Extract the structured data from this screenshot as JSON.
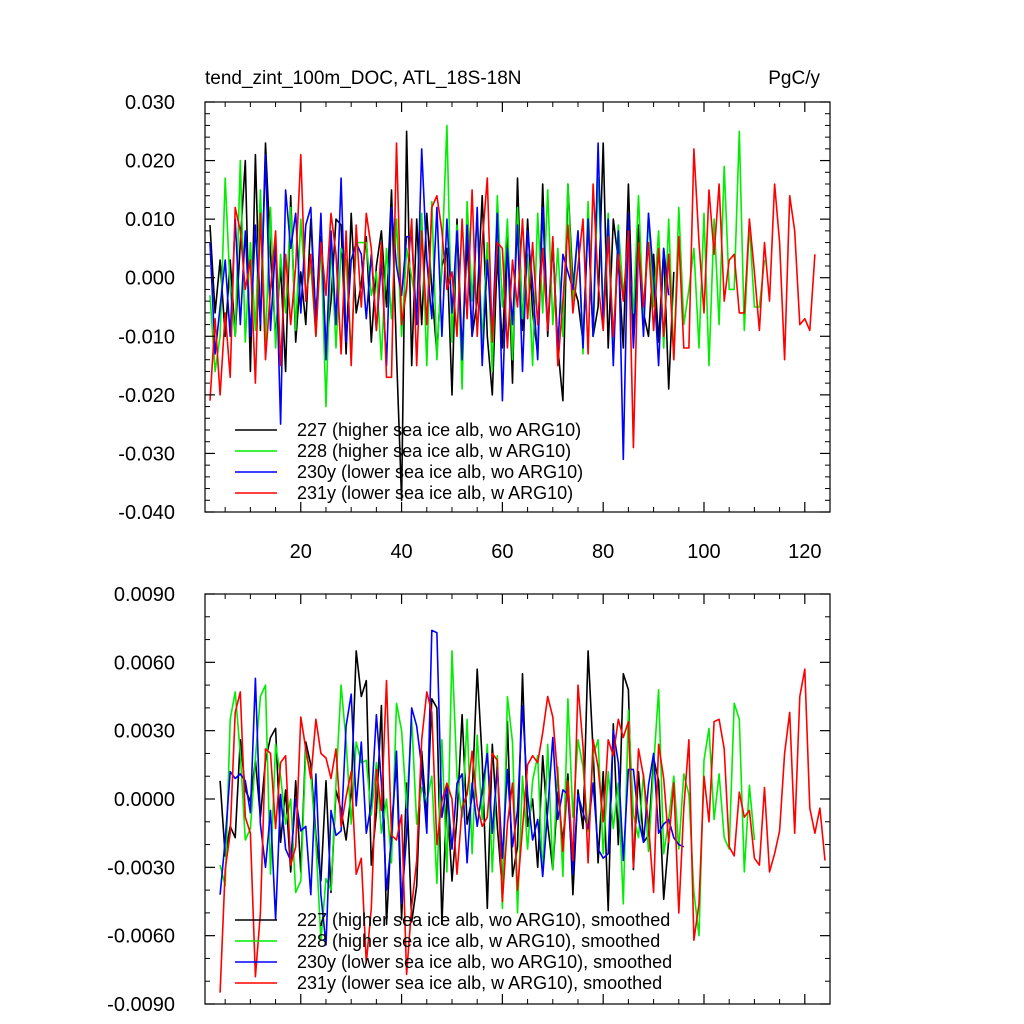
{
  "chart_data": [
    {
      "type": "line",
      "title": "tend_zint_100m_DOC, ATL_18S-18N",
      "units": "PgC/y",
      "xlim": [
        1,
        125
      ],
      "ylim": [
        -0.04,
        0.03
      ],
      "xticks": [
        20,
        40,
        60,
        80,
        100,
        120
      ],
      "xtick_labels": [
        "20",
        "40",
        "60",
        "80",
        "100",
        "120"
      ],
      "yticks": [
        -0.04,
        -0.03,
        -0.02,
        -0.01,
        0.0,
        0.01,
        0.02,
        0.03
      ],
      "ytick_labels": [
        "-0.040",
        "-0.030",
        "-0.020",
        "-0.010",
        "0.000",
        "0.010",
        "0.020",
        "0.030"
      ],
      "legend_position": "bottom-left",
      "series": [
        {
          "name": "227 (higher sea ice alb, wo ARG10)",
          "color": "#000000",
          "x_start": 2,
          "values": [
            0.009,
            -0.006,
            0.003,
            -0.01,
            0.003,
            -0.01,
            0.006,
            0.02,
            -0.016,
            0.021,
            -0.009,
            0.023,
            0.004,
            -0.01,
            0.002,
            -0.016,
            0.014,
            -0.011,
            0.001,
            -0.008,
            0.01,
            -0.007,
            0.007,
            -0.012,
            -0.004,
            0.01,
            0.009,
            -0.013,
            0.011,
            -0.006,
            -0.001,
            0.007,
            -0.011,
            0.002,
            0.008,
            -0.005,
            0.015,
            -0.013,
            -0.038,
            0.025,
            -0.015,
            0.01,
            -0.008,
            0.011,
            -0.002,
            -0.013,
            0.002,
            0.005,
            -0.02,
            0.01,
            -0.013,
            0.006,
            -0.01,
            -0.004,
            0.014,
            -0.01,
            -0.02,
            0.004,
            -0.012,
            0.008,
            -0.018,
            0.017,
            -0.009,
            0.01,
            -0.006,
            -0.013,
            0.016,
            -0.01,
            0.006,
            -0.012,
            -0.021,
            0.016,
            -0.001,
            -0.004,
            -0.011,
            0.01,
            -0.01,
            -0.005,
            0.023,
            -0.012,
            0.01,
            0.003,
            -0.012,
            0.016,
            -0.01,
            0.009,
            -0.006,
            -0.01,
            0.004,
            -0.011,
            0.005,
            -0.019,
            0.001
          ]
        },
        {
          "name": "228 (higher sea ice alb, w ARG10)",
          "color": "#00ee00",
          "x_start": 2,
          "values": [
            -0.003,
            -0.016,
            -0.01,
            0.017,
            -0.002,
            -0.01,
            0.02,
            -0.011,
            0.006,
            -0.009,
            0.015,
            -0.011,
            0.012,
            -0.012,
            0.004,
            -0.006,
            0.012,
            -0.009,
            0.01,
            -0.003,
            0.002,
            -0.01,
            0.006,
            -0.022,
            0.006,
            -0.012,
            0.005,
            0.003,
            -0.013,
            0.006,
            0.006,
            0.006,
            -0.003,
            0.001,
            -0.014,
            0.005,
            -0.007,
            0.01,
            -0.01,
            0.005,
            0.0,
            -0.005,
            0.011,
            -0.015,
            0.013,
            -0.014,
            0.003,
            0.026,
            -0.011,
            0.009,
            -0.019,
            0.013,
            -0.004,
            0.011,
            -0.011,
            0.006,
            -0.016,
            0.014,
            -0.005,
            0.01,
            -0.014,
            0.012,
            -0.007,
            0.004,
            -0.015,
            0.011,
            -0.006,
            0.015,
            -0.008,
            0.005,
            -0.01,
            0.016,
            -0.004,
            0.008,
            -0.013,
            0.013,
            -0.01,
            0.017,
            -0.006,
            0.011,
            -0.012,
            0.009,
            -0.003,
            0.005,
            -0.006,
            0.014,
            -0.007,
            0.011,
            -0.005,
            0.008,
            -0.012,
            0.01,
            -0.014,
            0.012,
            -0.008,
            -0.002,
            0.005,
            -0.012,
            0.011,
            -0.015,
            0.01,
            -0.008,
            0.019,
            -0.002,
            -0.002,
            0.025,
            -0.009,
            0.009,
            -0.005,
            -0.005,
            0.003
          ]
        },
        {
          "name": "230y (lower sea ice alb, wo ARG10)",
          "color": "#0000ff",
          "x_start": 2,
          "values": [
            0.006,
            -0.013,
            -0.005,
            0.003,
            -0.01,
            0.01,
            -0.008,
            0.008,
            -0.01,
            0.009,
            -0.008,
            0.021,
            -0.009,
            0.006,
            -0.025,
            0.015,
            0.005,
            0.011,
            -0.006,
            0.009,
            0.012,
            -0.008,
            0.011,
            -0.014,
            0.008,
            -0.008,
            0.017,
            -0.011,
            0.003,
            0.006,
            0.004,
            -0.007,
            0.004,
            -0.009,
            0.003,
            -0.015,
            0.012,
            0.002,
            -0.003,
            0.007,
            0.007,
            -0.008,
            0.022,
            0.003,
            -0.007,
            0.012,
            -0.01,
            0.01,
            -0.006,
            0.008,
            -0.014,
            0.009,
            -0.01,
            0.012,
            -0.015,
            0.003,
            -0.01,
            0.011,
            -0.021,
            0.005,
            -0.008,
            0.009,
            -0.016,
            0.008,
            -0.001,
            -0.014,
            0.012,
            -0.009,
            0.006,
            -0.012,
            0.004,
            0.001,
            -0.002,
            0.008,
            -0.012,
            0.01,
            -0.01,
            0.023,
            -0.008,
            0.01,
            -0.015,
            0.008,
            -0.031,
            0.011,
            -0.012,
            0.006,
            -0.01,
            0.011,
            0.0,
            -0.015,
            0.005,
            -0.003
          ]
        },
        {
          "name": "231y (lower sea ice alb, w ARG10)",
          "color": "#ff0000",
          "x_start": 2,
          "values": [
            -0.021,
            -0.007,
            -0.02,
            -0.006,
            -0.017,
            0.012,
            0.008,
            -0.002,
            0.003,
            -0.018,
            0.011,
            -0.014,
            -0.002,
            0.008,
            -0.015,
            0.004,
            -0.008,
            0.002,
            0.021,
            -0.004,
            0.004,
            -0.01,
            0.006,
            -0.003,
            0.011,
            0.004,
            -0.013,
            0.008,
            -0.015,
            0.009,
            -0.005,
            0.011,
            0.005,
            -0.009,
            0.006,
            -0.017,
            -0.017,
            0.023,
            -0.008,
            -0.002,
            0.01,
            -0.015,
            0.008,
            -0.008,
            0.012,
            0.014,
            0.008,
            -0.002,
            0.001,
            -0.01,
            0.01,
            -0.007,
            0.015,
            -0.01,
            0.006,
            0.017,
            -0.011,
            0.006,
            0.005,
            -0.012,
            0.003,
            -0.005,
            0.01,
            -0.007,
            0.006,
            -0.008,
            0.005,
            -0.009,
            0.007,
            -0.015,
            -0.004,
            0.009,
            -0.006,
            0.002,
            0.01,
            -0.013,
            0.016,
            -0.001,
            -0.009,
            0.007,
            -0.01,
            0.004,
            -0.004,
            0.008,
            -0.029,
            0.006,
            -0.005,
            0.006,
            -0.009,
            0.005,
            -0.01,
            0.004,
            -0.014,
            0.007,
            -0.012,
            -0.012,
            0.022,
            0.006,
            -0.006,
            0.015,
            0.004,
            0.016,
            -0.004,
            0.003,
            0.004,
            -0.006,
            -0.006,
            0.01,
            0.001,
            -0.009,
            0.006,
            -0.004,
            0.016,
            0.006,
            -0.014,
            0.014,
            0.008,
            -0.008,
            -0.007,
            -0.009,
            0.004
          ]
        }
      ]
    },
    {
      "type": "line",
      "title": "",
      "xlim": [
        1,
        125
      ],
      "ylim": [
        -0.009,
        0.009
      ],
      "xticks": [
        20,
        40,
        60,
        80,
        100,
        120
      ],
      "xtick_labels": [],
      "yticks": [
        -0.009,
        -0.006,
        -0.003,
        0.0,
        0.003,
        0.006,
        0.009
      ],
      "ytick_labels": [
        "-0.0090",
        "-0.0060",
        "-0.0030",
        "0.0000",
        "0.0030",
        "0.0060",
        "0.0090"
      ],
      "legend_position": "bottom-left",
      "series": [
        {
          "name": "227 (higher sea ice alb, wo ARG10), smoothed",
          "color": "#000000",
          "x_start": 4,
          "values": [
            0.0008,
            -0.0025,
            -0.0012,
            -0.0017,
            0.0026,
            0.0004,
            -0.0001,
            0.0017,
            -0.0008,
            0.0017,
            0.0027,
            0.0031,
            -0.0019,
            0.0004,
            -0.0032,
            0.0008,
            -0.0032,
            0.0025,
            0.0015,
            -0.0016,
            -0.0036,
            0.0008,
            -0.0041,
            0.0004,
            -0.0005,
            -0.0018,
            0.0003,
            0.0065,
            0.0045,
            0.0052,
            -0.0029,
            -0.0006,
            0.0041,
            -0.0055,
            -0.0012,
            0.0016,
            -0.0053,
            0.0007,
            -0.0054,
            -0.0038,
            0.0021,
            -0.0009,
            0.0044,
            0.004,
            -0.0055,
            0.0002,
            -0.0036,
            -0.0008,
            0.0037,
            -0.0011,
            0.0001,
            0.0057,
            0.0017,
            -0.0048,
            0.0024,
            -0.0012,
            -0.004,
            0.0034,
            -0.0034,
            -0.0021,
            0.0055,
            -0.0012,
            0.0,
            -0.003,
            0.0019,
            -0.0011,
            -0.0031,
            0.0003,
            -0.0019,
            0.0011,
            -0.0042,
            0.0004,
            -0.0013,
            0.0065,
            0.0021,
            -0.0028,
            0.0012,
            -0.0049,
            0.0033,
            -0.002,
            0.0055,
            0.0048,
            -0.0031,
            0.0012,
            -0.0019,
            -0.0016,
            0.0018,
            0.0008,
            -0.0044,
            -0.0018
          ]
        },
        {
          "name": "228 (higher sea ice alb, w ARG10), smoothed",
          "color": "#00ee00",
          "x_start": 4,
          "values": [
            -0.0029,
            -0.0038,
            0.0035,
            0.0047,
            0.002,
            -0.0018,
            -0.0013,
            0.0018,
            0.0045,
            0.005,
            -0.0033,
            0.0024,
            0.001,
            -0.0011,
            0.0,
            -0.0041,
            -0.0036,
            0.0021,
            0.0011,
            -0.0019,
            -0.0062,
            -0.0035,
            -0.004,
            0.0007,
            0.005,
            0.0025,
            -0.0011,
            0.0025,
            0.0016,
            0.0017,
            -0.0007,
            0.0016,
            -0.0015,
            0.0,
            -0.0028,
            0.0042,
            0.003,
            -0.0004,
            0.0035,
            -0.0011,
            0.0005,
            -0.0001,
            0.001,
            -0.0037,
            0.0026,
            -0.0032,
            0.0065,
            0.001,
            -0.0008,
            0.0035,
            -0.0024,
            0.0028,
            -0.0009,
            0.0024,
            -0.0032,
            0.0019,
            -0.0048,
            0.0045,
            0.0025,
            -0.005,
            0.001,
            -0.0022,
            0.0008,
            0.0019,
            -0.0034,
            0.0024,
            -0.0031,
            0.0014,
            -0.0034,
            0.0044,
            -0.0008,
            0.0026,
            0.0014,
            -0.0014,
            0.0019,
            0.0026,
            -0.0024,
            0.0012,
            -0.0013,
            0.0007,
            -0.0046,
            0.0039,
            -0.0007,
            -0.0017,
            0.0011,
            -0.0023,
            0.0014,
            0.0048,
            -0.0024,
            -0.0009,
            0.001,
            -0.0022,
            0.0011,
            0.0002,
            -0.0041,
            -0.006,
            0.0017,
            0.0031,
            -0.0009,
            0.0011,
            -0.0017,
            -0.0022,
            0.0042,
            0.0035,
            -0.0032,
            0.0006,
            -0.0018
          ]
        },
        {
          "name": "230y (lower sea ice alb, wo ARG10), smoothed",
          "color": "#0000ff",
          "x_start": 4,
          "values": [
            -0.0042,
            -0.0018,
            0.0012,
            0.0009,
            0.0011,
            0.0008,
            -0.0006,
            0.0053,
            -0.0011,
            -0.003,
            -0.0005,
            -0.0053,
            0.0002,
            -0.0022,
            -0.0027,
            0.0,
            -0.0014,
            -0.0012,
            -0.0042,
            0.0011,
            -0.0042,
            -0.0064,
            -0.0005,
            -0.0016,
            -0.0014,
            0.0032,
            0.0046,
            -0.0003,
            0.0025,
            -0.0015,
            -0.0002,
            0.0037,
            0.0007,
            -0.004,
            -0.0018,
            0.0021,
            -0.0046,
            -0.0016,
            0.004,
            0.0032,
            0.0014,
            -0.0015,
            0.0074,
            0.0073,
            -0.0008,
            0.0006,
            -0.0022,
            0.0007,
            0.0011,
            -0.0028,
            0.0007,
            -0.0012,
            0.0004,
            0.002,
            -0.0015,
            0.0014,
            -0.0026,
            0.0013,
            -0.0021,
            -0.0005,
            0.0041,
            0.0002,
            -0.0018,
            -0.0009,
            -0.0034,
            -0.0005,
            0.0027,
            -0.0009,
            0.0004,
            0.0002,
            -0.0033,
            0.0002,
            -0.0006,
            -0.0013,
            0.0007,
            -0.0022,
            -0.0026,
            -0.0024,
            0.003,
            0.0016,
            -0.0027,
            0.0013,
            0.0013,
            -0.0009,
            -0.0019,
            0.0006,
            0.002,
            -0.0015,
            -0.0011,
            -0.0009,
            -0.0017,
            -0.002,
            -0.0021
          ]
        },
        {
          "name": "231y (lower sea ice alb, w ARG10), smoothed",
          "color": "#ff0000",
          "x_start": 4,
          "values": [
            -0.0085,
            -0.0031,
            -0.0015,
            0.0038,
            0.0047,
            -0.0008,
            -0.0015,
            -0.0078,
            -0.005,
            0.0022,
            0.002,
            -0.0013,
            0.0016,
            0.0019,
            -0.0029,
            -0.0021,
            0.0036,
            0.0022,
            0.0009,
            0.0035,
            0.002,
            0.0018,
            0.0009,
            0.0022,
            -0.0012,
            0.0001,
            0.0012,
            -0.0033,
            -0.0026,
            -0.0072,
            -0.0048,
            0.0013,
            -0.0005,
            0.0052,
            -0.0016,
            -0.0018,
            -0.0007,
            -0.0077,
            -0.0047,
            -0.0027,
            0.0026,
            0.0047,
            0.0038,
            -0.002,
            -0.0001,
            0.0007,
            0.0,
            -0.0033,
            -0.0004,
            0.0002,
            0.0021,
            -0.0003,
            -0.0012,
            -0.0008,
            0.002,
            0.0017,
            -0.0045,
            -0.0011,
            0.0007,
            -0.004,
            -0.0013,
            0.0015,
            0.0019,
            0.0016,
            0.0029,
            0.0045,
            0.0036,
            0.0009,
            -0.0023,
            0.0008,
            -0.0027,
            0.005,
            0.0023,
            -0.0028,
            0.0026,
            0.0014,
            -0.001,
            0.0026,
            0.0019,
            0.0035,
            0.0027,
            0.0034,
            -0.003,
            0.0022,
            0.001,
            -0.0011,
            -0.0041,
            0.0024,
            0.0009,
            -0.0019,
            0.0007,
            -0.005,
            -0.0004,
            0.0026,
            -0.0062,
            -0.0046,
            0.001,
            -0.001,
            0.0034,
            0.0035,
            0.0022,
            -0.0021,
            -0.0025,
            0.0003,
            -0.0008,
            -0.0005,
            -0.0026,
            -0.0029,
            0.0005,
            -0.0032,
            -0.0024,
            -0.0014,
            0.002,
            0.0038,
            -0.0015,
            0.0045,
            0.0057,
            -0.0004,
            -0.0015,
            -0.0004,
            -0.0027
          ]
        }
      ]
    }
  ]
}
